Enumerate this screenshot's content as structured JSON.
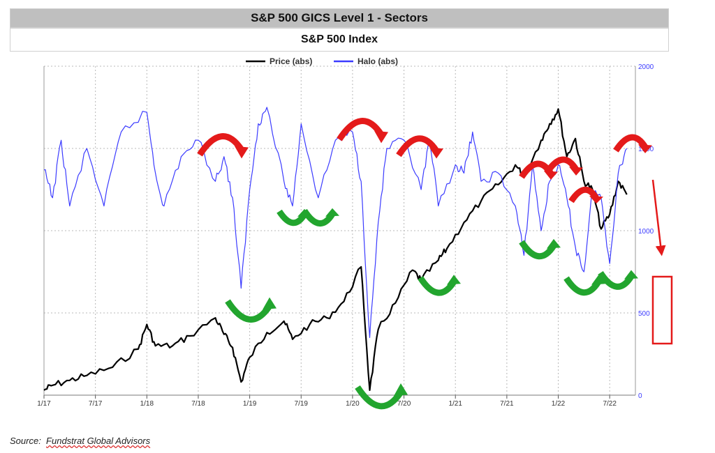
{
  "header": {
    "title": "S&P 500 GICS Level 1 - Sectors",
    "subtitle": "S&P 500 Index"
  },
  "source": {
    "prefix": "Source:",
    "org": "Fundstrat Global Advisors"
  },
  "colors": {
    "price": "#000000",
    "halo": "#3b3bff",
    "turn_up": "#22a52e",
    "turn_down": "#e41a1a",
    "grid": "#b8b8b8"
  },
  "chart_data": {
    "type": "line",
    "x_tick_labels": [
      "1/17",
      "7/17",
      "1/18",
      "7/18",
      "1/19",
      "7/19",
      "1/20",
      "7/20",
      "1/21",
      "7/21",
      "1/22",
      "7/22"
    ],
    "y_right_ticks": [
      0,
      500,
      1000,
      1500,
      2000
    ],
    "ylim": [
      0,
      2000
    ],
    "grid": true,
    "legend_position": "top-center",
    "series": [
      {
        "name": "Price (abs)",
        "color": "#000000",
        "x": [
          "2017-01",
          "2017-02",
          "2017-04",
          "2017-06",
          "2017-09",
          "2017-12",
          "2018-01",
          "2018-02",
          "2018-04",
          "2018-06",
          "2018-09",
          "2018-10",
          "2018-11",
          "2018-12",
          "2019-01",
          "2019-03",
          "2019-05",
          "2019-06",
          "2019-08",
          "2019-10",
          "2019-12",
          "2020-02",
          "2020-03",
          "2020-04",
          "2020-06",
          "2020-08",
          "2020-09",
          "2020-11",
          "2020-12",
          "2021-02",
          "2021-04",
          "2021-06",
          "2021-08",
          "2021-09",
          "2021-11",
          "2021-12",
          "2022-01",
          "2022-02",
          "2022-03",
          "2022-04",
          "2022-05",
          "2022-06",
          "2022-07",
          "2022-08",
          "2022-09"
        ],
        "values": [
          30,
          60,
          90,
          120,
          170,
          280,
          430,
          300,
          300,
          360,
          470,
          370,
          290,
          80,
          230,
          380,
          450,
          340,
          430,
          470,
          570,
          780,
          30,
          400,
          560,
          760,
          700,
          820,
          890,
          1050,
          1180,
          1280,
          1400,
          1330,
          1550,
          1650,
          1740,
          1450,
          1560,
          1300,
          1250,
          1010,
          1100,
          1300,
          1220
        ]
      },
      {
        "name": "Halo (abs)",
        "color": "#3b3bff",
        "x": [
          "2017-01",
          "2017-02",
          "2017-03",
          "2017-04",
          "2017-06",
          "2017-08",
          "2017-10",
          "2018-01",
          "2018-02",
          "2018-03",
          "2018-05",
          "2018-07",
          "2018-09",
          "2018-10",
          "2018-11",
          "2018-12",
          "2019-01",
          "2019-02",
          "2019-03",
          "2019-05",
          "2019-06",
          "2019-07",
          "2019-09",
          "2019-11",
          "2020-01",
          "2020-02",
          "2020-03",
          "2020-04",
          "2020-05",
          "2020-07",
          "2020-09",
          "2020-10",
          "2020-11",
          "2021-01",
          "2021-02",
          "2021-03",
          "2021-04",
          "2021-06",
          "2021-08",
          "2021-09",
          "2021-10",
          "2021-11",
          "2021-12",
          "2022-01",
          "2022-02",
          "2022-03",
          "2022-04",
          "2022-05",
          "2022-06",
          "2022-07",
          "2022-08",
          "2022-09"
        ],
        "values": [
          1370,
          1200,
          1550,
          1150,
          1500,
          1150,
          1600,
          1720,
          1350,
          1150,
          1450,
          1550,
          1300,
          1450,
          1200,
          650,
          1250,
          1650,
          1750,
          1300,
          1150,
          1650,
          1200,
          1550,
          1600,
          1300,
          350,
          1050,
          1500,
          1550,
          1250,
          1550,
          1150,
          1400,
          1350,
          1600,
          1300,
          1350,
          1150,
          850,
          1400,
          1000,
          1300,
          1400,
          1200,
          900,
          750,
          1250,
          1200,
          800,
          1350,
          1500
        ]
      }
    ]
  },
  "annotations": {
    "turns_down_count": 7,
    "turns_up_count": 8,
    "forecast_arrow": "down",
    "forecast_box": true
  }
}
